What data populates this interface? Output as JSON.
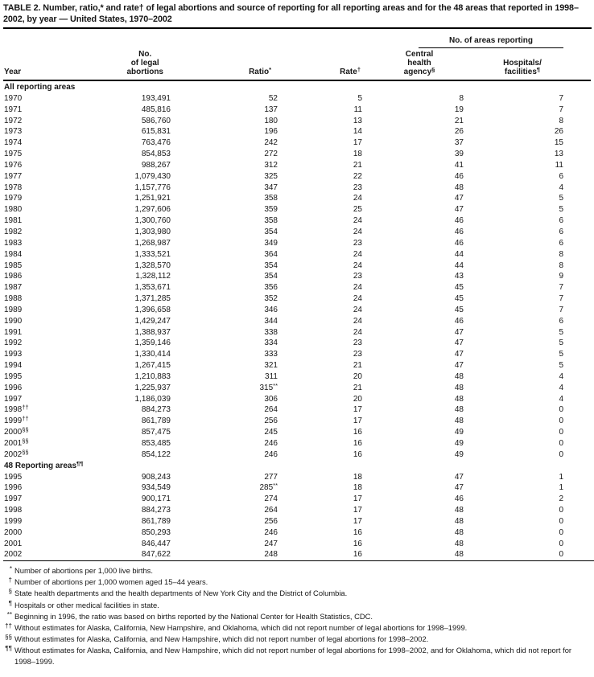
{
  "title": "TABLE 2. Number, ratio,* and rate† of legal abortions and source of reporting for all reporting areas and for the 48 areas that reported in 1998–2002, by year — United States, 1970–2002",
  "table": {
    "areas_reporting_header": "No. of areas reporting",
    "columns": [
      {
        "label": "Year",
        "sup": ""
      },
      {
        "label": "No.\nof legal\nabortions",
        "sup": ""
      },
      {
        "label": "Ratio",
        "sup": "*"
      },
      {
        "label": "Rate",
        "sup": "†"
      },
      {
        "label": "Central\nhealth\nagency",
        "sup": "§"
      },
      {
        "label": "Hospitals/\nfacilities",
        "sup": "¶"
      }
    ],
    "sections": [
      {
        "label": "All reporting areas",
        "label_sup": "",
        "rows": [
          {
            "year": "1970",
            "year_sup": "",
            "abortions": "193,491",
            "ratio": "52",
            "ratio_sup": "",
            "rate": "5",
            "central_agency": "8",
            "hospitals": "7"
          },
          {
            "year": "1971",
            "year_sup": "",
            "abortions": "485,816",
            "ratio": "137",
            "ratio_sup": "",
            "rate": "11",
            "central_agency": "19",
            "hospitals": "7"
          },
          {
            "year": "1972",
            "year_sup": "",
            "abortions": "586,760",
            "ratio": "180",
            "ratio_sup": "",
            "rate": "13",
            "central_agency": "21",
            "hospitals": "8"
          },
          {
            "year": "1973",
            "year_sup": "",
            "abortions": "615,831",
            "ratio": "196",
            "ratio_sup": "",
            "rate": "14",
            "central_agency": "26",
            "hospitals": "26"
          },
          {
            "year": "1974",
            "year_sup": "",
            "abortions": "763,476",
            "ratio": "242",
            "ratio_sup": "",
            "rate": "17",
            "central_agency": "37",
            "hospitals": "15"
          },
          {
            "year": "1975",
            "year_sup": "",
            "abortions": "854,853",
            "ratio": "272",
            "ratio_sup": "",
            "rate": "18",
            "central_agency": "39",
            "hospitals": "13"
          },
          {
            "year": "1976",
            "year_sup": "",
            "abortions": "988,267",
            "ratio": "312",
            "ratio_sup": "",
            "rate": "21",
            "central_agency": "41",
            "hospitals": "11"
          },
          {
            "year": "1977",
            "year_sup": "",
            "abortions": "1,079,430",
            "ratio": "325",
            "ratio_sup": "",
            "rate": "22",
            "central_agency": "46",
            "hospitals": "6"
          },
          {
            "year": "1978",
            "year_sup": "",
            "abortions": "1,157,776",
            "ratio": "347",
            "ratio_sup": "",
            "rate": "23",
            "central_agency": "48",
            "hospitals": "4"
          },
          {
            "year": "1979",
            "year_sup": "",
            "abortions": "1,251,921",
            "ratio": "358",
            "ratio_sup": "",
            "rate": "24",
            "central_agency": "47",
            "hospitals": "5"
          },
          {
            "year": "1980",
            "year_sup": "",
            "abortions": "1,297,606",
            "ratio": "359",
            "ratio_sup": "",
            "rate": "25",
            "central_agency": "47",
            "hospitals": "5"
          },
          {
            "year": "1981",
            "year_sup": "",
            "abortions": "1,300,760",
            "ratio": "358",
            "ratio_sup": "",
            "rate": "24",
            "central_agency": "46",
            "hospitals": "6"
          },
          {
            "year": "1982",
            "year_sup": "",
            "abortions": "1,303,980",
            "ratio": "354",
            "ratio_sup": "",
            "rate": "24",
            "central_agency": "46",
            "hospitals": "6"
          },
          {
            "year": "1983",
            "year_sup": "",
            "abortions": "1,268,987",
            "ratio": "349",
            "ratio_sup": "",
            "rate": "23",
            "central_agency": "46",
            "hospitals": "6"
          },
          {
            "year": "1984",
            "year_sup": "",
            "abortions": "1,333,521",
            "ratio": "364",
            "ratio_sup": "",
            "rate": "24",
            "central_agency": "44",
            "hospitals": "8"
          },
          {
            "year": "1985",
            "year_sup": "",
            "abortions": "1,328,570",
            "ratio": "354",
            "ratio_sup": "",
            "rate": "24",
            "central_agency": "44",
            "hospitals": "8"
          },
          {
            "year": "1986",
            "year_sup": "",
            "abortions": "1,328,112",
            "ratio": "354",
            "ratio_sup": "",
            "rate": "23",
            "central_agency": "43",
            "hospitals": "9"
          },
          {
            "year": "1987",
            "year_sup": "",
            "abortions": "1,353,671",
            "ratio": "356",
            "ratio_sup": "",
            "rate": "24",
            "central_agency": "45",
            "hospitals": "7"
          },
          {
            "year": "1988",
            "year_sup": "",
            "abortions": "1,371,285",
            "ratio": "352",
            "ratio_sup": "",
            "rate": "24",
            "central_agency": "45",
            "hospitals": "7"
          },
          {
            "year": "1989",
            "year_sup": "",
            "abortions": "1,396,658",
            "ratio": "346",
            "ratio_sup": "",
            "rate": "24",
            "central_agency": "45",
            "hospitals": "7"
          },
          {
            "year": "1990",
            "year_sup": "",
            "abortions": "1,429,247",
            "ratio": "344",
            "ratio_sup": "",
            "rate": "24",
            "central_agency": "46",
            "hospitals": "6"
          },
          {
            "year": "1991",
            "year_sup": "",
            "abortions": "1,388,937",
            "ratio": "338",
            "ratio_sup": "",
            "rate": "24",
            "central_agency": "47",
            "hospitals": "5"
          },
          {
            "year": "1992",
            "year_sup": "",
            "abortions": "1,359,146",
            "ratio": "334",
            "ratio_sup": "",
            "rate": "23",
            "central_agency": "47",
            "hospitals": "5"
          },
          {
            "year": "1993",
            "year_sup": "",
            "abortions": "1,330,414",
            "ratio": "333",
            "ratio_sup": "",
            "rate": "23",
            "central_agency": "47",
            "hospitals": "5"
          },
          {
            "year": "1994",
            "year_sup": "",
            "abortions": "1,267,415",
            "ratio": "321",
            "ratio_sup": "",
            "rate": "21",
            "central_agency": "47",
            "hospitals": "5"
          },
          {
            "year": "1995",
            "year_sup": "",
            "abortions": "1,210,883",
            "ratio": "311",
            "ratio_sup": "",
            "rate": "20",
            "central_agency": "48",
            "hospitals": "4"
          },
          {
            "year": "1996",
            "year_sup": "",
            "abortions": "1,225,937",
            "ratio": "315",
            "ratio_sup": "**",
            "rate": "21",
            "central_agency": "48",
            "hospitals": "4"
          },
          {
            "year": "1997",
            "year_sup": "",
            "abortions": "1,186,039",
            "ratio": "306",
            "ratio_sup": "",
            "rate": "20",
            "central_agency": "48",
            "hospitals": "4"
          },
          {
            "year": "1998",
            "year_sup": "††",
            "abortions": "884,273",
            "ratio": "264",
            "ratio_sup": "",
            "rate": "17",
            "central_agency": "48",
            "hospitals": "0"
          },
          {
            "year": "1999",
            "year_sup": "††",
            "abortions": "861,789",
            "ratio": "256",
            "ratio_sup": "",
            "rate": "17",
            "central_agency": "48",
            "hospitals": "0"
          },
          {
            "year": "2000",
            "year_sup": "§§",
            "abortions": "857,475",
            "ratio": "245",
            "ratio_sup": "",
            "rate": "16",
            "central_agency": "49",
            "hospitals": "0"
          },
          {
            "year": "2001",
            "year_sup": "§§",
            "abortions": "853,485",
            "ratio": "246",
            "ratio_sup": "",
            "rate": "16",
            "central_agency": "49",
            "hospitals": "0"
          },
          {
            "year": "2002",
            "year_sup": "§§",
            "abortions": "854,122",
            "ratio": "246",
            "ratio_sup": "",
            "rate": "16",
            "central_agency": "49",
            "hospitals": "0"
          }
        ]
      },
      {
        "label": "48 Reporting areas",
        "label_sup": "¶¶",
        "rows": [
          {
            "year": "1995",
            "year_sup": "",
            "abortions": "908,243",
            "ratio": "277",
            "ratio_sup": "",
            "rate": "18",
            "central_agency": "47",
            "hospitals": "1"
          },
          {
            "year": "1996",
            "year_sup": "",
            "abortions": "934,549",
            "ratio": "285",
            "ratio_sup": "**",
            "rate": "18",
            "central_agency": "47",
            "hospitals": "1"
          },
          {
            "year": "1997",
            "year_sup": "",
            "abortions": "900,171",
            "ratio": "274",
            "ratio_sup": "",
            "rate": "17",
            "central_agency": "46",
            "hospitals": "2"
          },
          {
            "year": "1998",
            "year_sup": "",
            "abortions": "884,273",
            "ratio": "264",
            "ratio_sup": "",
            "rate": "17",
            "central_agency": "48",
            "hospitals": "0"
          },
          {
            "year": "1999",
            "year_sup": "",
            "abortions": "861,789",
            "ratio": "256",
            "ratio_sup": "",
            "rate": "17",
            "central_agency": "48",
            "hospitals": "0"
          },
          {
            "year": "2000",
            "year_sup": "",
            "abortions": "850,293",
            "ratio": "246",
            "ratio_sup": "",
            "rate": "16",
            "central_agency": "48",
            "hospitals": "0"
          },
          {
            "year": "2001",
            "year_sup": "",
            "abortions": "846,447",
            "ratio": "247",
            "ratio_sup": "",
            "rate": "16",
            "central_agency": "48",
            "hospitals": "0"
          },
          {
            "year": "2002",
            "year_sup": "",
            "abortions": "847,622",
            "ratio": "248",
            "ratio_sup": "",
            "rate": "16",
            "central_agency": "48",
            "hospitals": "0"
          }
        ]
      }
    ]
  },
  "footnotes": [
    {
      "symbol": "*",
      "text": "Number of abortions per 1,000 live births."
    },
    {
      "symbol": "†",
      "text": "Number of abortions per 1,000 women aged 15–44 years."
    },
    {
      "symbol": "§",
      "text": "State health departments and the health departments of New York City and the District of Columbia."
    },
    {
      "symbol": "¶",
      "text": "Hospitals or other medical facilities in state."
    },
    {
      "symbol": "**",
      "text": "Beginning in 1996, the ratio was based on births reported by the National Center for Health Statistics, CDC."
    },
    {
      "symbol": "††",
      "text": "Without estimates for Alaska, California, New Hampshire, and Oklahoma, which did not report number of legal abortions for 1998–1999."
    },
    {
      "symbol": "§§",
      "text": "Without estimates for Alaska, California, and New Hampshire, which did not report number of legal abortions for 1998–2002."
    },
    {
      "symbol": "¶¶",
      "text": "Without estimates for Alaska, California, and New Hampshire, which did not report number of legal abortions for 1998–2002, and for Oklahoma, which did not report for 1998–1999."
    }
  ]
}
